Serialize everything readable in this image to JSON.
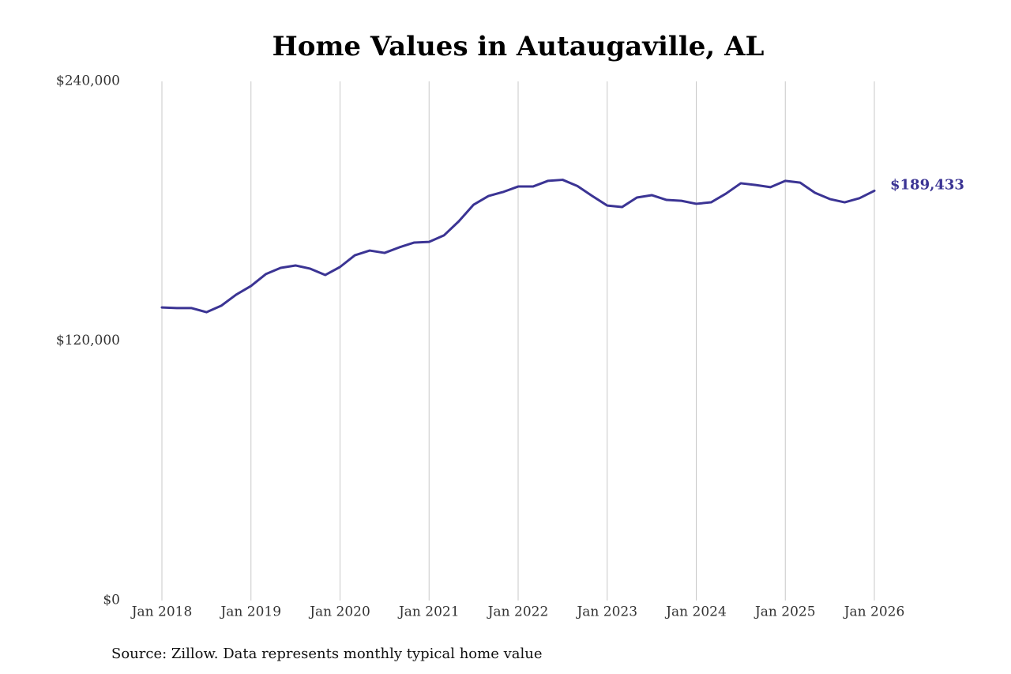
{
  "chart_data": {
    "type": "line",
    "title": "Home Values in Autaugaville, AL",
    "source": "Source: Zillow. Data represents monthly typical home value",
    "x": [
      "2018-01",
      "2018-03",
      "2018-05",
      "2018-07",
      "2018-09",
      "2018-11",
      "2019-01",
      "2019-03",
      "2019-05",
      "2019-07",
      "2019-09",
      "2019-11",
      "2020-01",
      "2020-03",
      "2020-05",
      "2020-07",
      "2020-09",
      "2020-11",
      "2021-01",
      "2021-03",
      "2021-05",
      "2021-07",
      "2021-09",
      "2021-11",
      "2022-01",
      "2022-03",
      "2022-05",
      "2022-07",
      "2022-09",
      "2022-11",
      "2023-01",
      "2023-03",
      "2023-05",
      "2023-07",
      "2023-09",
      "2023-11",
      "2024-01",
      "2024-03",
      "2024-05",
      "2024-07",
      "2024-09",
      "2024-11",
      "2025-01",
      "2025-03",
      "2025-05",
      "2025-07",
      "2025-09",
      "2025-11",
      "2026-01"
    ],
    "series": [
      {
        "name": "Typical home value",
        "color": "#3b3494",
        "values": [
          135500,
          135200,
          135200,
          133300,
          136300,
          141400,
          145400,
          150900,
          153800,
          154900,
          153400,
          150500,
          154200,
          159600,
          161800,
          160700,
          163300,
          165500,
          165800,
          168800,
          175300,
          183000,
          187000,
          188900,
          191400,
          191400,
          194000,
          194500,
          191600,
          187000,
          182600,
          181900,
          186300,
          187400,
          185200,
          184800,
          183400,
          184100,
          188100,
          192900,
          192100,
          191100,
          194000,
          193200,
          188500,
          185600,
          184100,
          186000,
          189433
        ],
        "value_labels": [
          null,
          null,
          null,
          null,
          null,
          null,
          null,
          null,
          null,
          null,
          null,
          null,
          null,
          null,
          null,
          null,
          null,
          null,
          null,
          null,
          null,
          null,
          null,
          null,
          null,
          null,
          null,
          null,
          null,
          null,
          null,
          null,
          null,
          null,
          null,
          null,
          null,
          null,
          null,
          null,
          null,
          null,
          null,
          null,
          null,
          null,
          null,
          null,
          "$189,433"
        ]
      }
    ],
    "xlim": [
      "2018-01",
      "2026-01"
    ],
    "xticks": [
      {
        "value": "2018-01",
        "label": "Jan 2018"
      },
      {
        "value": "2019-01",
        "label": "Jan 2019"
      },
      {
        "value": "2020-01",
        "label": "Jan 2020"
      },
      {
        "value": "2021-01",
        "label": "Jan 2021"
      },
      {
        "value": "2022-01",
        "label": "Jan 2022"
      },
      {
        "value": "2023-01",
        "label": "Jan 2023"
      },
      {
        "value": "2024-01",
        "label": "Jan 2024"
      },
      {
        "value": "2025-01",
        "label": "Jan 2025"
      },
      {
        "value": "2026-01",
        "label": "Jan 2026"
      }
    ],
    "ylim": [
      0,
      240000
    ],
    "yticks": [
      {
        "value": 0,
        "label": "$0"
      },
      {
        "value": 120000,
        "label": "$120,000"
      },
      {
        "value": 240000,
        "label": "$240,000"
      }
    ],
    "grid": "x"
  }
}
